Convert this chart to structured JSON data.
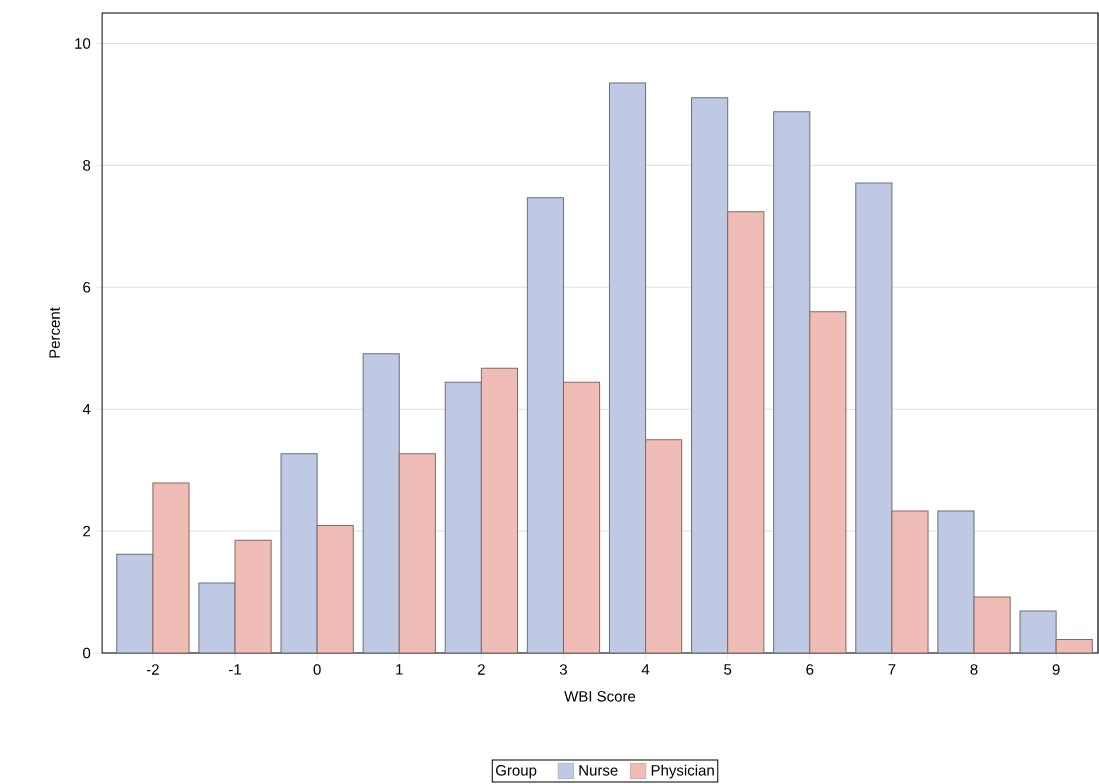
{
  "chart_data": {
    "type": "bar",
    "xlabel": "WBI Score",
    "ylabel": "Percent",
    "legend_title": "Group",
    "categories": [
      "-2",
      "-1",
      "0",
      "1",
      "2",
      "3",
      "4",
      "5",
      "6",
      "7",
      "8",
      "9"
    ],
    "series": [
      {
        "name": "Nurse",
        "color": "#bfc9e3",
        "values": [
          1.62,
          1.15,
          3.27,
          4.91,
          4.44,
          7.47,
          9.35,
          9.11,
          8.88,
          7.71,
          2.33,
          0.69
        ]
      },
      {
        "name": "Physician",
        "color": "#efbdb6",
        "values": [
          2.79,
          1.85,
          2.09,
          3.27,
          4.67,
          4.44,
          3.5,
          7.24,
          5.6,
          2.33,
          0.92,
          0.22
        ]
      }
    ],
    "ylim": [
      0,
      10.5
    ],
    "yticks": [
      0,
      2,
      4,
      6,
      8,
      10
    ],
    "grid": "y",
    "legend": "bottom"
  }
}
